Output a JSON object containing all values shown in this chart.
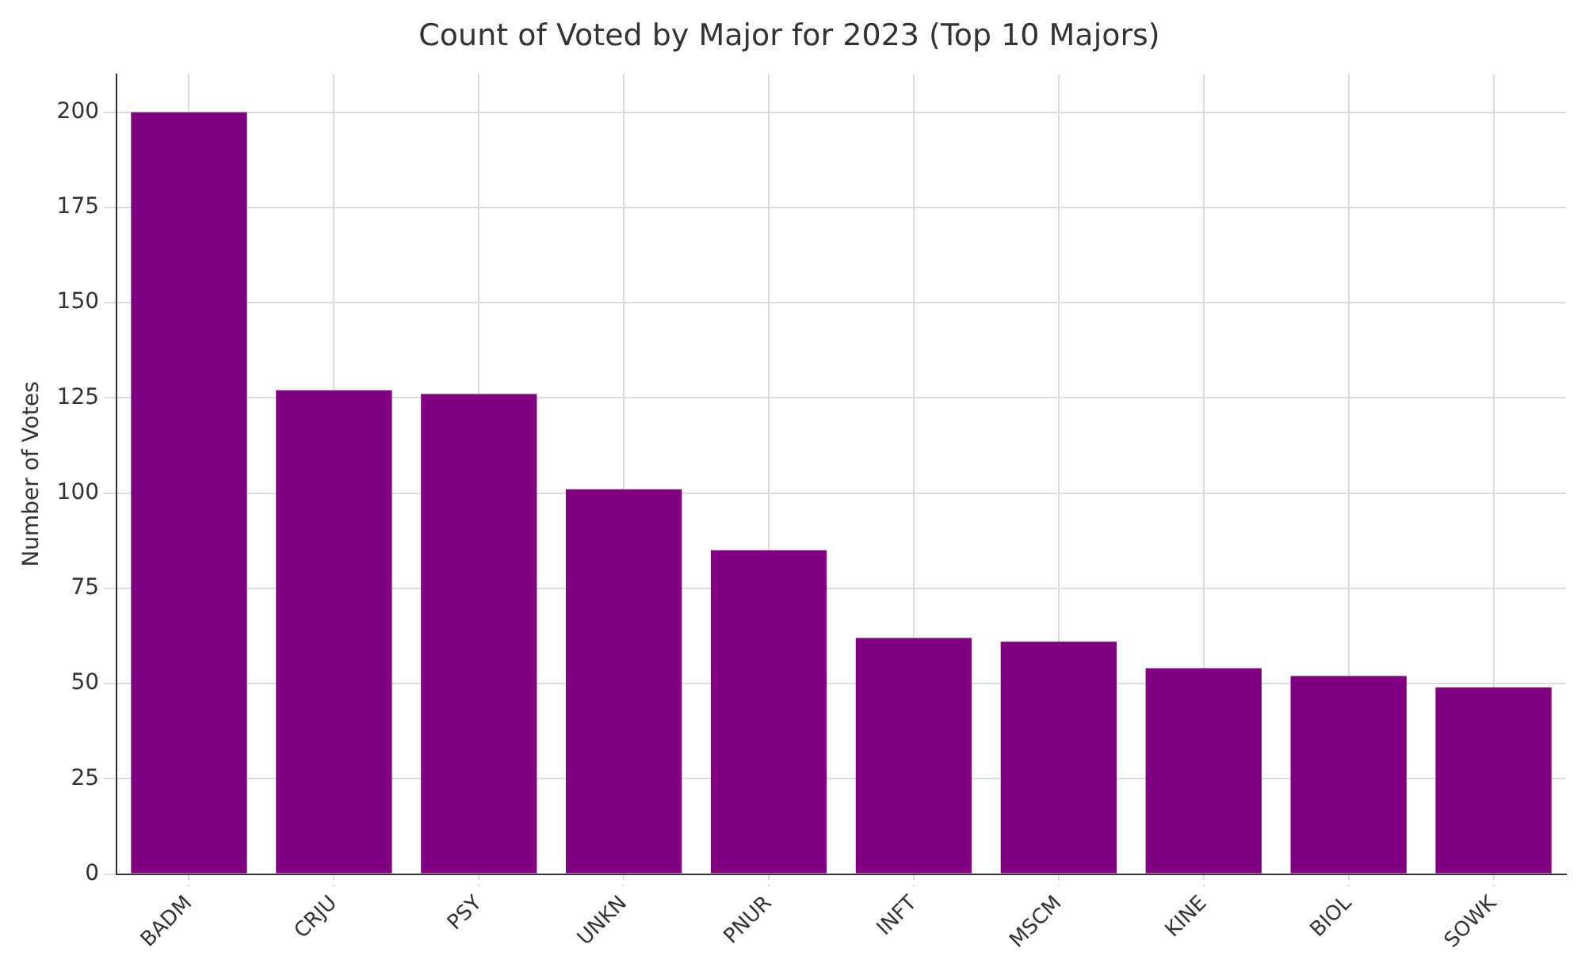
{
  "chart_data": {
    "type": "bar",
    "title": "Count of Voted by Major for 2023 (Top 10 Majors)",
    "ylabel": "Number of Votes",
    "categories": [
      "BADM",
      "CRJU",
      "PSY",
      "UNKN",
      "PNUR",
      "INFT",
      "MSCM",
      "KINE",
      "BIOL",
      "SOWK"
    ],
    "values": [
      200,
      127,
      126,
      101,
      85,
      62,
      61,
      54,
      52,
      49
    ],
    "color": "#800080",
    "ylim": [
      0,
      210
    ],
    "yticks": [
      0,
      25,
      50,
      75,
      100,
      125,
      150,
      175,
      200
    ],
    "grid": true
  }
}
